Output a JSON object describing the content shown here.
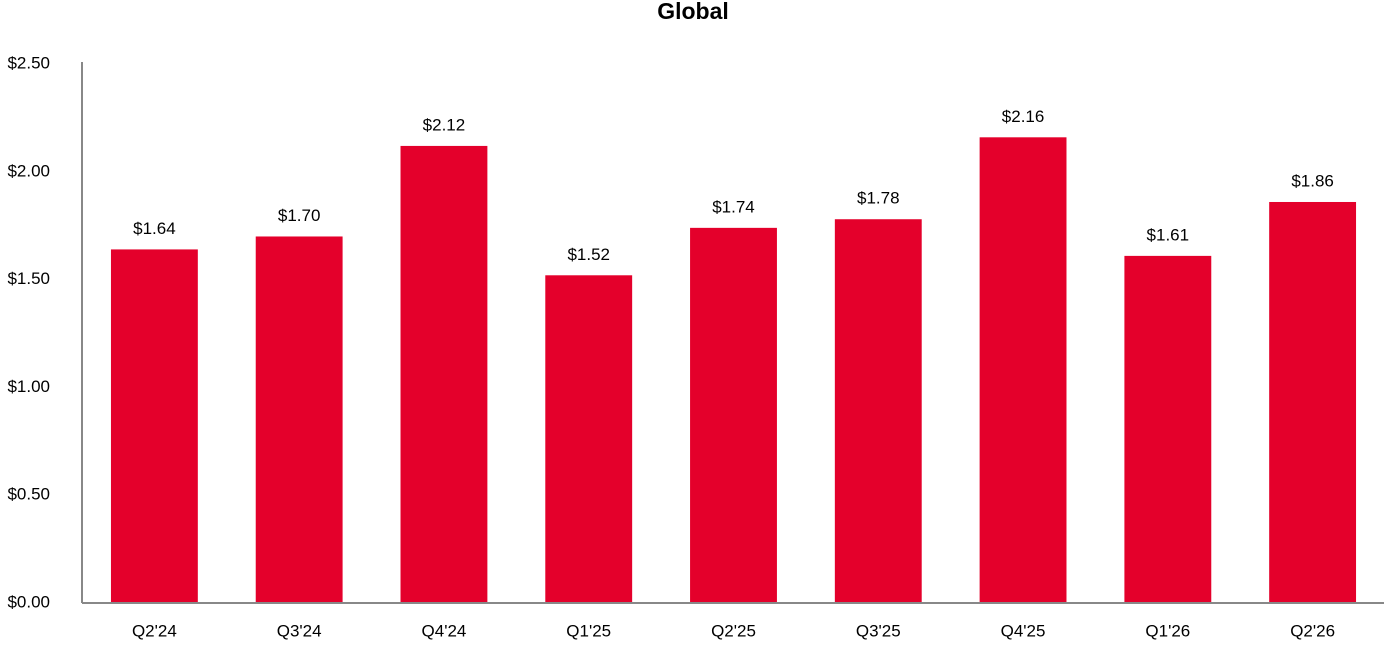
{
  "chart_data": {
    "type": "bar",
    "title": "Global",
    "categories": [
      "Q2'24",
      "Q3'24",
      "Q4'24",
      "Q1'25",
      "Q2'25",
      "Q3'25",
      "Q4'25",
      "Q1'26",
      "Q2'26"
    ],
    "values": [
      1.64,
      1.7,
      2.12,
      1.52,
      1.74,
      1.78,
      2.16,
      1.61,
      1.86
    ],
    "value_labels": [
      "$1.64",
      "$1.70",
      "$2.12",
      "$1.52",
      "$1.74",
      "$1.78",
      "$2.16",
      "$1.61",
      "$1.86"
    ],
    "color": "#e4002b",
    "ylim": [
      0,
      2.5
    ],
    "yticks": [
      {
        "value": 0,
        "label": "$0.00"
      },
      {
        "value": 0.5,
        "label": "$0.50"
      },
      {
        "value": 1,
        "label": "$1.00"
      },
      {
        "value": 1.5,
        "label": "$1.50"
      },
      {
        "value": 2,
        "label": "$2.00"
      },
      {
        "value": 2.5,
        "label": "$2.50"
      }
    ],
    "grid": false
  }
}
